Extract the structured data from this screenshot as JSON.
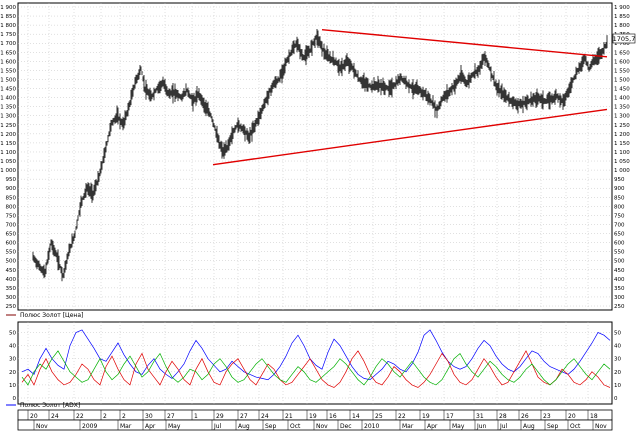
{
  "chart_data": [
    {
      "type": "candlestick",
      "legend": "Полюс Золот [Цена]",
      "last_price_label": "1705,7",
      "ylim": [
        250,
        1900
      ],
      "yticks": [
        250,
        300,
        350,
        400,
        450,
        500,
        550,
        600,
        650,
        700,
        750,
        800,
        850,
        900,
        950,
        1000,
        1050,
        1100,
        1150,
        1200,
        1250,
        1300,
        1350,
        1400,
        1450,
        1500,
        1550,
        1600,
        1650,
        1700,
        1750,
        1800,
        1850,
        1900
      ],
      "ytick_labels": [
        "250",
        "300",
        "350",
        "400",
        "450",
        "500",
        "550",
        "600",
        "650",
        "700",
        "750",
        "800",
        "850",
        "900",
        "950",
        "1 000",
        "1 050",
        "1 100",
        "1 150",
        "1 200",
        "1 250",
        "1 300",
        "1 350",
        "1 400",
        "1 450",
        "1 500",
        "1 550",
        "1 600",
        "1 650",
        "1 700",
        "1 750",
        "1 800",
        "1 850",
        "1 900"
      ],
      "price_path": [
        [
          0,
          520
        ],
        [
          6,
          470
        ],
        [
          12,
          430
        ],
        [
          18,
          600
        ],
        [
          24,
          520
        ],
        [
          30,
          420
        ],
        [
          36,
          550
        ],
        [
          42,
          650
        ],
        [
          48,
          820
        ],
        [
          54,
          900
        ],
        [
          60,
          870
        ],
        [
          66,
          960
        ],
        [
          72,
          1100
        ],
        [
          78,
          1250
        ],
        [
          84,
          1300
        ],
        [
          90,
          1250
        ],
        [
          96,
          1350
        ],
        [
          102,
          1480
        ],
        [
          108,
          1560
        ],
        [
          112,
          1450
        ],
        [
          118,
          1400
        ],
        [
          124,
          1450
        ],
        [
          130,
          1480
        ],
        [
          136,
          1420
        ],
        [
          142,
          1430
        ],
        [
          148,
          1400
        ],
        [
          154,
          1440
        ],
        [
          160,
          1380
        ],
        [
          166,
          1420
        ],
        [
          172,
          1350
        ],
        [
          178,
          1300
        ],
        [
          182,
          1230
        ],
        [
          186,
          1150
        ],
        [
          190,
          1100
        ],
        [
          194,
          1120
        ],
        [
          198,
          1180
        ],
        [
          204,
          1250
        ],
        [
          210,
          1230
        ],
        [
          216,
          1180
        ],
        [
          222,
          1250
        ],
        [
          228,
          1320
        ],
        [
          234,
          1400
        ],
        [
          240,
          1470
        ],
        [
          246,
          1500
        ],
        [
          252,
          1580
        ],
        [
          258,
          1650
        ],
        [
          264,
          1700
        ],
        [
          270,
          1620
        ],
        [
          276,
          1650
        ],
        [
          280,
          1700
        ],
        [
          284,
          1740
        ],
        [
          288,
          1690
        ],
        [
          292,
          1640
        ],
        [
          296,
          1620
        ],
        [
          302,
          1600
        ],
        [
          308,
          1560
        ],
        [
          314,
          1600
        ],
        [
          320,
          1560
        ],
        [
          326,
          1500
        ],
        [
          332,
          1480
        ],
        [
          338,
          1460
        ],
        [
          344,
          1470
        ],
        [
          350,
          1460
        ],
        [
          356,
          1450
        ],
        [
          362,
          1470
        ],
        [
          368,
          1510
        ],
        [
          374,
          1480
        ],
        [
          380,
          1450
        ],
        [
          386,
          1440
        ],
        [
          392,
          1420
        ],
        [
          398,
          1380
        ],
        [
          404,
          1330
        ],
        [
          410,
          1400
        ],
        [
          416,
          1430
        ],
        [
          422,
          1470
        ],
        [
          428,
          1520
        ],
        [
          434,
          1480
        ],
        [
          440,
          1530
        ],
        [
          446,
          1560
        ],
        [
          452,
          1630
        ],
        [
          458,
          1540
        ],
        [
          464,
          1450
        ],
        [
          470,
          1420
        ],
        [
          476,
          1390
        ],
        [
          482,
          1370
        ],
        [
          488,
          1360
        ],
        [
          494,
          1380
        ],
        [
          500,
          1390
        ],
        [
          506,
          1400
        ],
        [
          512,
          1380
        ],
        [
          518,
          1390
        ],
        [
          524,
          1410
        ],
        [
          530,
          1380
        ],
        [
          536,
          1440
        ],
        [
          540,
          1500
        ],
        [
          546,
          1560
        ],
        [
          552,
          1620
        ],
        [
          556,
          1560
        ],
        [
          560,
          1600
        ],
        [
          564,
          1620
        ],
        [
          570,
          1660
        ],
        [
          574,
          1706
        ]
      ],
      "trendlines": [
        {
          "from": [
            289,
            1775
          ],
          "to": [
            574,
            1625
          ],
          "color": "#e00000"
        },
        {
          "from": [
            180,
            1030
          ],
          "to": [
            574,
            1335
          ],
          "color": "#e00000"
        }
      ]
    },
    {
      "type": "line",
      "legend": "Полюс Золот [ADX]",
      "ylim": [
        0,
        55
      ],
      "yticks": [
        0,
        10,
        20,
        30,
        40,
        50
      ],
      "ytick_labels": [
        "0",
        "10",
        "20",
        "30",
        "40",
        "50"
      ],
      "series": [
        {
          "color": "#0000ff",
          "values": [
            20,
            22,
            18,
            30,
            38,
            30,
            25,
            22,
            40,
            50,
            52,
            45,
            38,
            30,
            28,
            35,
            42,
            33,
            26,
            20,
            18,
            25,
            30,
            22,
            18,
            15,
            20,
            26,
            36,
            44,
            38,
            30,
            25,
            20,
            22,
            28,
            24,
            20,
            18,
            16,
            15,
            14,
            18,
            24,
            32,
            42,
            48,
            40,
            30,
            25,
            22,
            35,
            45,
            40,
            32,
            24,
            18,
            15,
            14,
            18,
            22,
            28,
            26,
            22,
            20,
            26,
            35,
            48,
            52,
            44,
            35,
            28,
            24,
            22,
            24,
            30,
            38,
            44,
            40,
            32,
            26,
            22,
            20,
            24,
            30,
            36,
            34,
            28,
            24,
            22,
            20,
            18,
            22,
            28,
            35,
            42,
            50,
            48,
            44
          ]
        },
        {
          "color": "#e00000",
          "values": [
            12,
            18,
            10,
            22,
            30,
            20,
            14,
            10,
            12,
            18,
            26,
            22,
            14,
            10,
            24,
            32,
            22,
            14,
            10,
            26,
            34,
            22,
            16,
            10,
            20,
            28,
            22,
            14,
            10,
            22,
            30,
            20,
            12,
            10,
            20,
            26,
            30,
            22,
            14,
            10,
            18,
            26,
            22,
            14,
            10,
            12,
            18,
            24,
            30,
            22,
            14,
            10,
            8,
            12,
            20,
            30,
            36,
            28,
            18,
            12,
            10,
            16,
            24,
            20,
            14,
            10,
            8,
            12,
            18,
            26,
            34,
            28,
            18,
            12,
            10,
            14,
            22,
            30,
            24,
            16,
            10,
            12,
            20,
            28,
            36,
            26,
            16,
            12,
            10,
            14,
            22,
            18,
            12,
            10,
            14,
            20,
            16,
            10,
            8
          ]
        },
        {
          "color": "#00b000",
          "values": [
            16,
            10,
            20,
            26,
            22,
            30,
            36,
            28,
            20,
            16,
            12,
            14,
            22,
            30,
            20,
            14,
            18,
            26,
            32,
            24,
            16,
            20,
            28,
            34,
            24,
            16,
            12,
            16,
            22,
            20,
            14,
            18,
            26,
            30,
            24,
            16,
            12,
            14,
            20,
            26,
            30,
            24,
            18,
            14,
            12,
            18,
            24,
            20,
            14,
            12,
            16,
            20,
            24,
            30,
            26,
            20,
            14,
            10,
            16,
            24,
            30,
            26,
            20,
            16,
            22,
            28,
            22,
            16,
            12,
            10,
            14,
            22,
            30,
            34,
            26,
            20,
            16,
            22,
            28,
            24,
            18,
            14,
            12,
            16,
            22,
            26,
            20,
            14,
            10,
            14,
            20,
            26,
            30,
            24,
            18,
            14,
            20,
            26,
            22
          ]
        }
      ]
    }
  ],
  "x_axis": {
    "day_labels": [
      {
        "x": 28,
        "text": "20"
      },
      {
        "x": 49,
        "text": "24"
      },
      {
        "x": 74,
        "text": "22"
      },
      {
        "x": 101,
        "text": "2"
      },
      {
        "x": 120,
        "text": "2"
      },
      {
        "x": 143,
        "text": "30"
      },
      {
        "x": 165,
        "text": "27"
      },
      {
        "x": 192,
        "text": "1"
      },
      {
        "x": 214,
        "text": "29"
      },
      {
        "x": 238,
        "text": "27"
      },
      {
        "x": 259,
        "text": "24"
      },
      {
        "x": 283,
        "text": "21"
      },
      {
        "x": 307,
        "text": "19"
      },
      {
        "x": 327,
        "text": "16"
      },
      {
        "x": 350,
        "text": "14"
      },
      {
        "x": 373,
        "text": "25"
      },
      {
        "x": 396,
        "text": "22"
      },
      {
        "x": 420,
        "text": "19"
      },
      {
        "x": 444,
        "text": "17"
      },
      {
        "x": 474,
        "text": "31"
      },
      {
        "x": 497,
        "text": "28"
      },
      {
        "x": 519,
        "text": "26"
      },
      {
        "x": 541,
        "text": "23"
      },
      {
        "x": 566,
        "text": "20"
      },
      {
        "x": 588,
        "text": "18"
      }
    ],
    "month_labels": [
      {
        "x": 36,
        "text": "Nov"
      },
      {
        "x": 82,
        "text": "2009"
      },
      {
        "x": 120,
        "text": "Mar"
      },
      {
        "x": 145,
        "text": "Apr"
      },
      {
        "x": 168,
        "text": "May"
      },
      {
        "x": 214,
        "text": "Jul"
      },
      {
        "x": 238,
        "text": "Aug"
      },
      {
        "x": 265,
        "text": "Sep"
      },
      {
        "x": 290,
        "text": "Oct"
      },
      {
        "x": 316,
        "text": "Nov"
      },
      {
        "x": 340,
        "text": "Dec"
      },
      {
        "x": 364,
        "text": "2010"
      },
      {
        "x": 402,
        "text": "Mar"
      },
      {
        "x": 427,
        "text": "Apr"
      },
      {
        "x": 452,
        "text": "May"
      },
      {
        "x": 477,
        "text": "Jun"
      },
      {
        "x": 500,
        "text": "Jul"
      },
      {
        "x": 523,
        "text": "Aug"
      },
      {
        "x": 547,
        "text": "Sep"
      },
      {
        "x": 570,
        "text": "Oct"
      },
      {
        "x": 595,
        "text": "Nov"
      }
    ]
  },
  "colors": {
    "grid": "#c0c0c0",
    "frame": "#000000",
    "bar": "#000000",
    "trend": "#e00000",
    "adx_blue": "#0000ff",
    "adx_red": "#e00000",
    "adx_green": "#00b000"
  }
}
